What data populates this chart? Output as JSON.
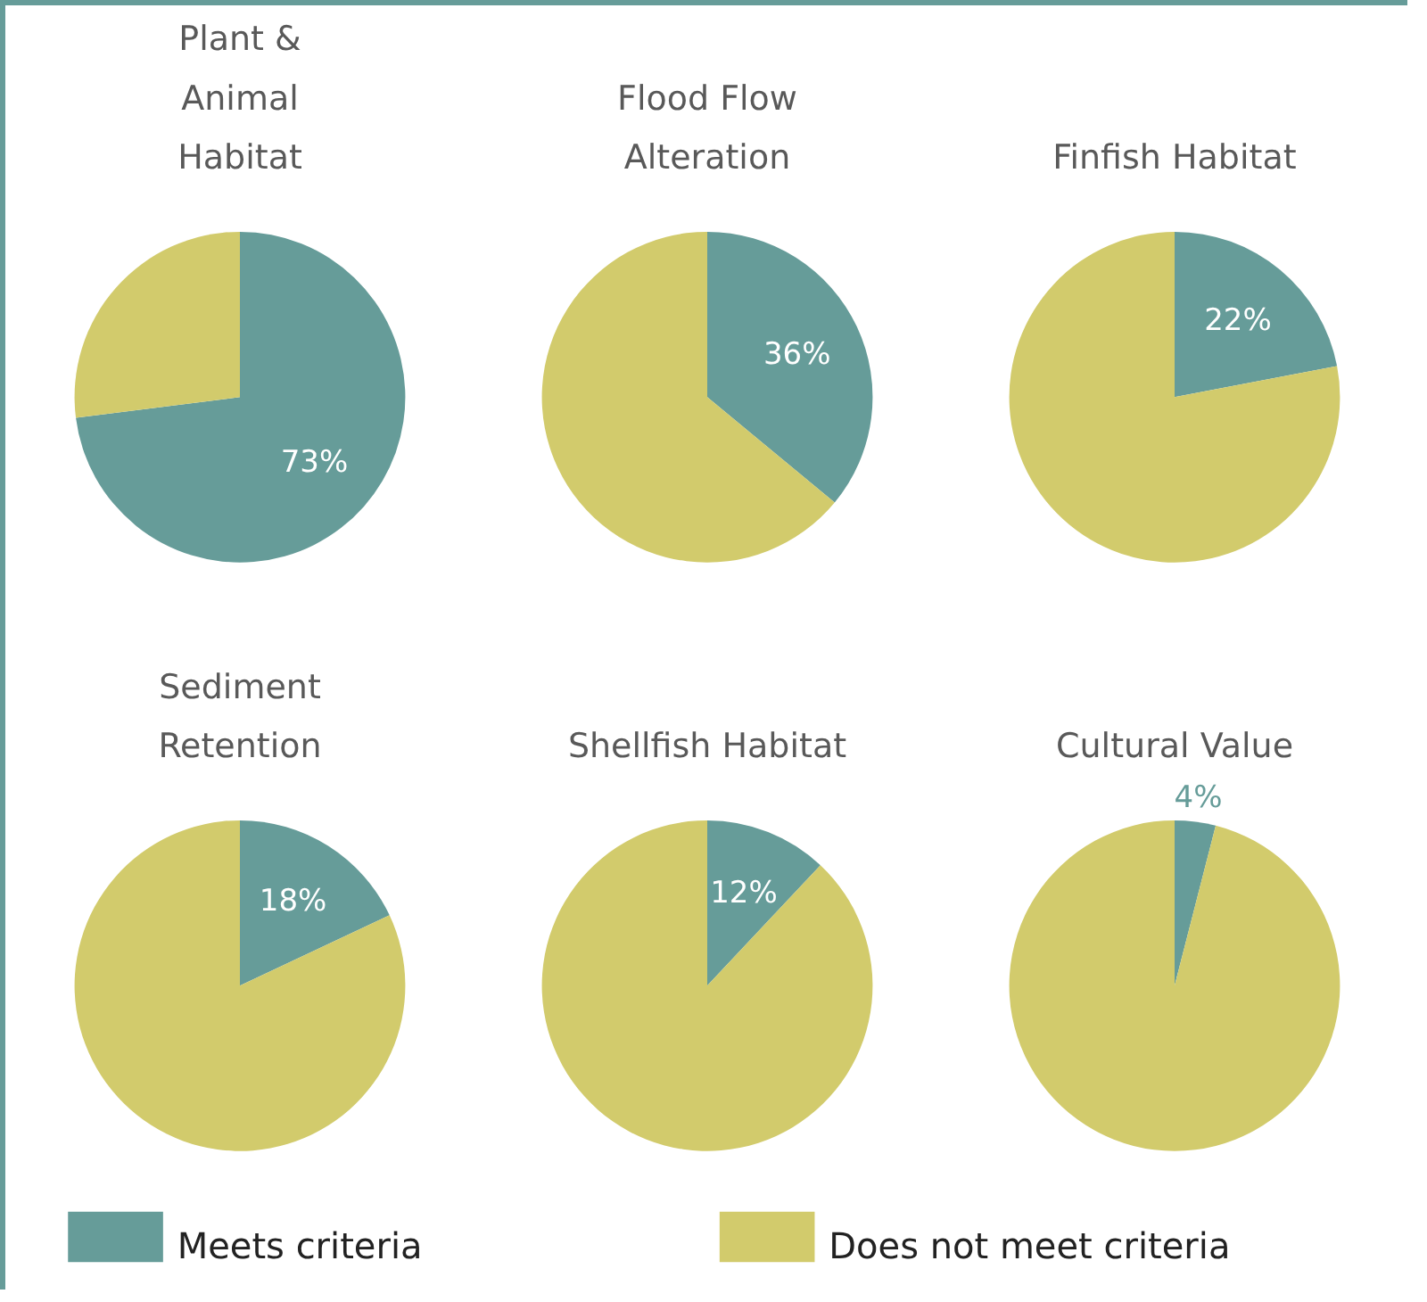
{
  "chart_data": [
    {
      "type": "pie",
      "title": "Plant &\nAnimal\nHabitat",
      "categories": [
        "Meets criteria",
        "Does not meet criteria"
      ],
      "values": [
        73,
        27
      ],
      "colors": [
        "#669c99",
        "#d2cb6c"
      ],
      "value_labels": [
        "73%",
        null
      ],
      "legend": "bottom"
    },
    {
      "type": "pie",
      "title": "Flood Flow\nAlteration",
      "categories": [
        null,
        null
      ],
      "values": [
        36,
        64
      ],
      "colors": [
        "#669c99",
        "#d2cb6c"
      ],
      "value_labels": [
        "36%",
        null
      ]
    },
    {
      "type": "pie",
      "title": "Finfish Habitat",
      "categories": [
        null,
        null
      ],
      "values": [
        22,
        78
      ],
      "colors": [
        "#669c99",
        "#d2cb6c"
      ],
      "value_labels": [
        "22%",
        null
      ]
    },
    {
      "type": "pie",
      "title": "Sediment\nRetention",
      "categories": [
        null,
        null
      ],
      "values": [
        18,
        82
      ],
      "colors": [
        "#669c99",
        "#d2cb6c"
      ],
      "value_labels": [
        "18%",
        null
      ]
    },
    {
      "type": "pie",
      "title": "Shellfish Habitat",
      "categories": [
        null,
        null
      ],
      "values": [
        12,
        88
      ],
      "colors": [
        "#669c99",
        "#d2cb6c"
      ],
      "value_labels": [
        "12%",
        null
      ]
    },
    {
      "type": "pie",
      "title": "Cultural Value",
      "categories": [
        null,
        null
      ],
      "values": [
        4,
        96
      ],
      "colors": [
        "#669c99",
        "#d2cb6c"
      ],
      "value_labels": [
        "4%",
        null
      ]
    }
  ]
}
